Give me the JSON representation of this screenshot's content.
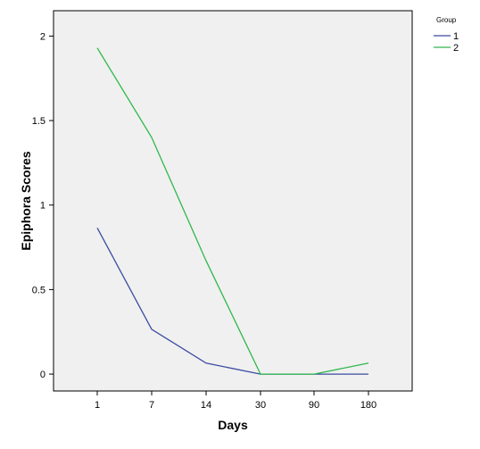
{
  "chart_data": {
    "type": "line",
    "title": "",
    "xlabel": "Days",
    "ylabel": "Epiphora Scores",
    "categories": [
      "1",
      "7",
      "14",
      "30",
      "90",
      "180"
    ],
    "ylim": [
      -0.1,
      2.15
    ],
    "yticks": [
      0,
      0.5,
      1,
      1.5,
      2
    ],
    "ytick_labels": [
      "0",
      "0.5",
      "1",
      "1.5",
      "2"
    ],
    "grid": false,
    "legend": {
      "title": "Group",
      "placement": "top-right-outside"
    },
    "series": [
      {
        "name": "1",
        "color": "#3b4ba0",
        "values": [
          0.865,
          0.265,
          0.065,
          0.0,
          0.0,
          0.0
        ]
      },
      {
        "name": "2",
        "color": "#2eb84a",
        "values": [
          1.93,
          1.4,
          0.67,
          0.0,
          0.0,
          0.065
        ]
      }
    ]
  }
}
